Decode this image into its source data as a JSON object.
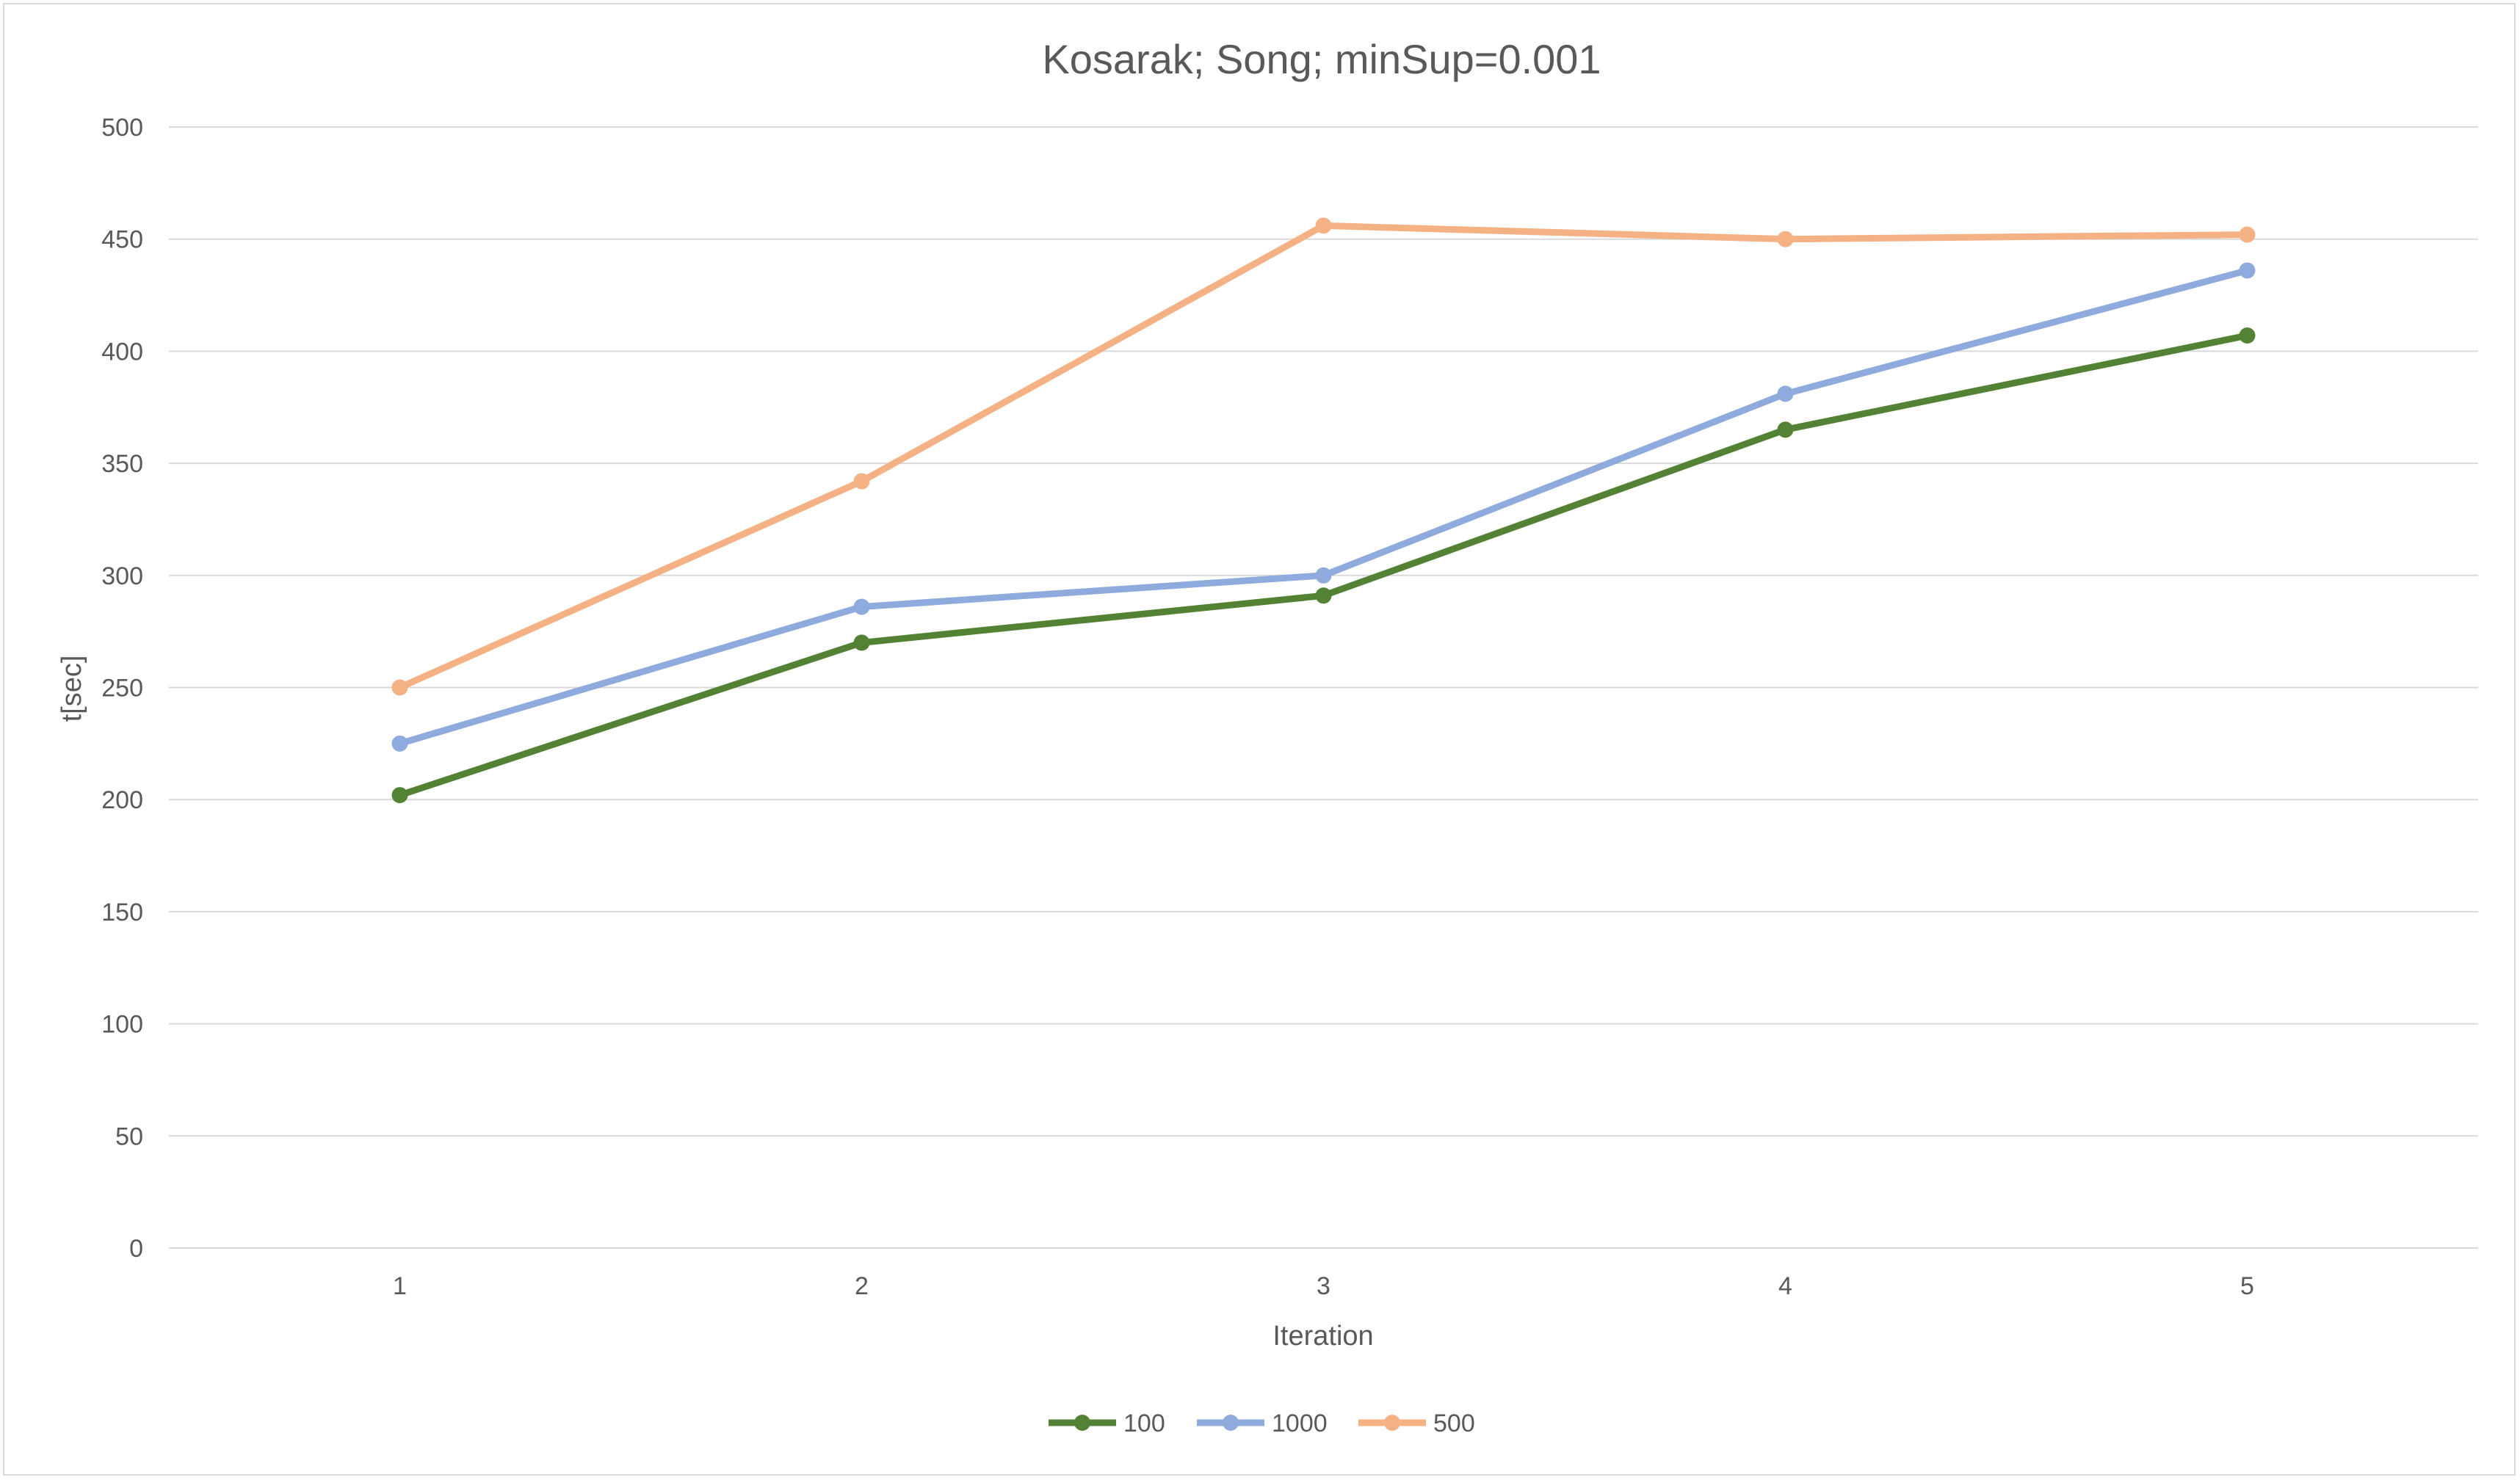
{
  "chart_data": {
    "type": "line",
    "title": "Kosarak; Song; minSup=0.001",
    "xlabel": "Iteration",
    "ylabel": "t[sec]",
    "categories": [
      "1",
      "2",
      "3",
      "4",
      "5"
    ],
    "ylim": [
      0,
      500
    ],
    "yticks": [
      0,
      50,
      100,
      150,
      200,
      250,
      300,
      350,
      400,
      450,
      500
    ],
    "grid": true,
    "legend_position": "bottom",
    "series": [
      {
        "name": "100",
        "color": "#548235",
        "values": [
          202,
          270,
          291,
          365,
          407
        ]
      },
      {
        "name": "1000",
        "color": "#8faadc",
        "values": [
          225,
          286,
          300,
          381,
          436
        ]
      },
      {
        "name": "500",
        "color": "#f4b183",
        "values": [
          250,
          342,
          456,
          450,
          452
        ]
      }
    ]
  }
}
